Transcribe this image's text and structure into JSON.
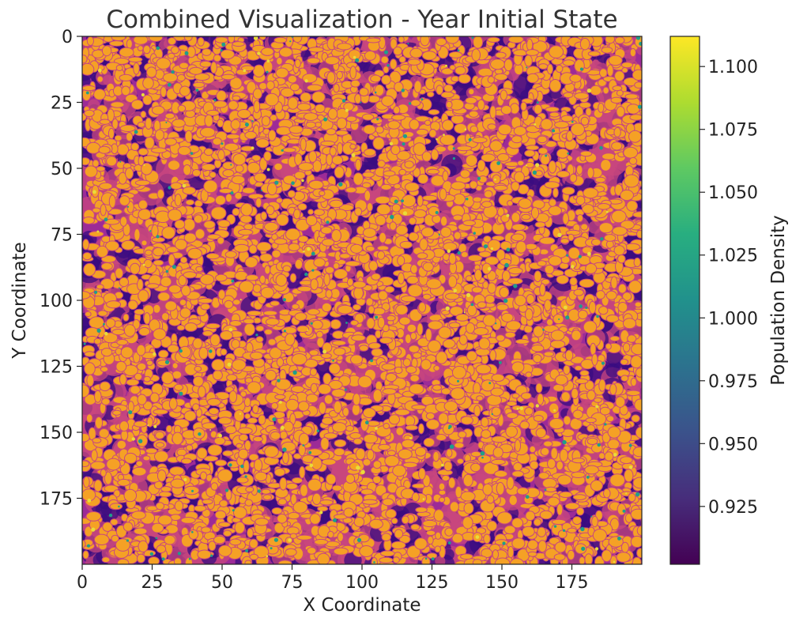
{
  "chart_data": {
    "type": "heatmap",
    "title": "Combined Visualization - Year Initial State",
    "xlabel": "X Coordinate",
    "ylabel": "Y Coordinate",
    "xlim": [
      0,
      200
    ],
    "ylim": [
      200,
      0
    ],
    "x_ticks": [
      0,
      25,
      50,
      75,
      100,
      125,
      150,
      175
    ],
    "y_ticks": [
      0,
      25,
      50,
      75,
      100,
      125,
      150,
      175
    ],
    "colorbar": {
      "label": "Population Density",
      "range": [
        0.902,
        1.112
      ],
      "ticks": [
        "0.925",
        "0.950",
        "0.975",
        "1.000",
        "1.025",
        "1.050",
        "1.075",
        "1.100"
      ],
      "colormap": "viridis"
    },
    "overlay_colormap": "plasma",
    "field_colors": {
      "dark": "#3a0c80",
      "mid": "#9c2b97",
      "pink": "#c8477e",
      "orange": "#f5a125",
      "teal": "#1f9e8a",
      "yellow": "#e9dc3a"
    }
  }
}
